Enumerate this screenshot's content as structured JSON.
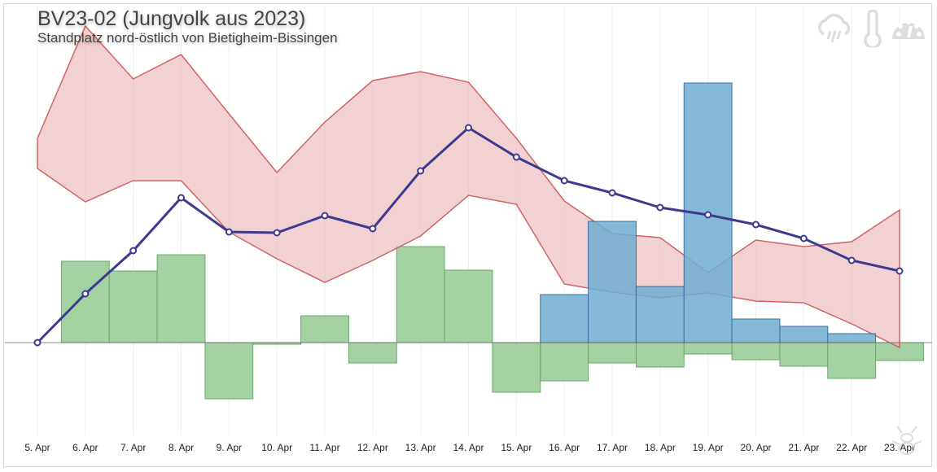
{
  "header": {
    "title": "BV23-02 (Jungvolk aus 2023)",
    "subtitle": "Standplatz nord-östlich von Bietigheim-Bissingen"
  },
  "toolbar": {
    "icons": [
      "rain-icon",
      "thermometer-icon",
      "gauge-icon"
    ]
  },
  "logo": "bee-logo",
  "chart_data": {
    "type": "combo",
    "title": "BV23-02 (Jungvolk aus 2023)",
    "subtitle": "Standplatz nord-östlich von Bietigheim-Bissingen",
    "y_axis_labels_shown": false,
    "grid": "vertical",
    "legend": "none",
    "categories": [
      "5. Apr",
      "6. Apr",
      "7. Apr",
      "8. Apr",
      "9. Apr",
      "10. Apr",
      "11. Apr",
      "12. Apr",
      "13. Apr",
      "14. Apr",
      "15. Apr",
      "16. Apr",
      "17. Apr",
      "18. Apr",
      "19. Apr",
      "20. Apr",
      "21. Apr",
      "22. Apr",
      "23. Apr"
    ],
    "series": [
      {
        "kind": "bar",
        "color": "#9dcf9d",
        "stroke": "#6aa86a",
        "values": [
          0,
          10.0,
          8.8,
          10.8,
          -6.9,
          -0.2,
          3.3,
          -2.5,
          11.8,
          8.9,
          -6.1,
          -4.7,
          -2.5,
          -3.0,
          -1.4,
          -2.1,
          -2.9,
          -4.4,
          -2.2
        ]
      },
      {
        "kind": "range",
        "color": "#e9b9b9",
        "stroke": "#d06464",
        "high": [
          25.1,
          38.9,
          32.4,
          35.4,
          28.1,
          20.9,
          27.1,
          32.2,
          33.3,
          32.0,
          25.1,
          17.4,
          13.4,
          12.9,
          8.6,
          12.6,
          11.8,
          12.4,
          16.3
        ],
        "low": [
          21.4,
          17.3,
          19.9,
          19.9,
          13.6,
          10.3,
          7.4,
          10.1,
          13.1,
          18.1,
          17.0,
          7.2,
          6.2,
          5.5,
          6.1,
          5.1,
          4.9,
          2.3,
          -0.6
        ]
      },
      {
        "kind": "bar",
        "color": "#6faed0",
        "stroke": "#3f6fa8",
        "values": [
          null,
          null,
          null,
          null,
          null,
          null,
          null,
          null,
          null,
          null,
          null,
          5.9,
          14.9,
          6.9,
          31.9,
          2.9,
          2.0,
          1.1,
          null
        ]
      },
      {
        "kind": "line",
        "color": "#3f3a8f",
        "values": [
          0,
          6.0,
          11.3,
          17.8,
          13.6,
          13.5,
          15.6,
          14.0,
          21.1,
          26.4,
          22.8,
          19.9,
          18.4,
          16.6,
          15.7,
          14.5,
          12.8,
          10.1,
          8.8
        ]
      }
    ]
  }
}
